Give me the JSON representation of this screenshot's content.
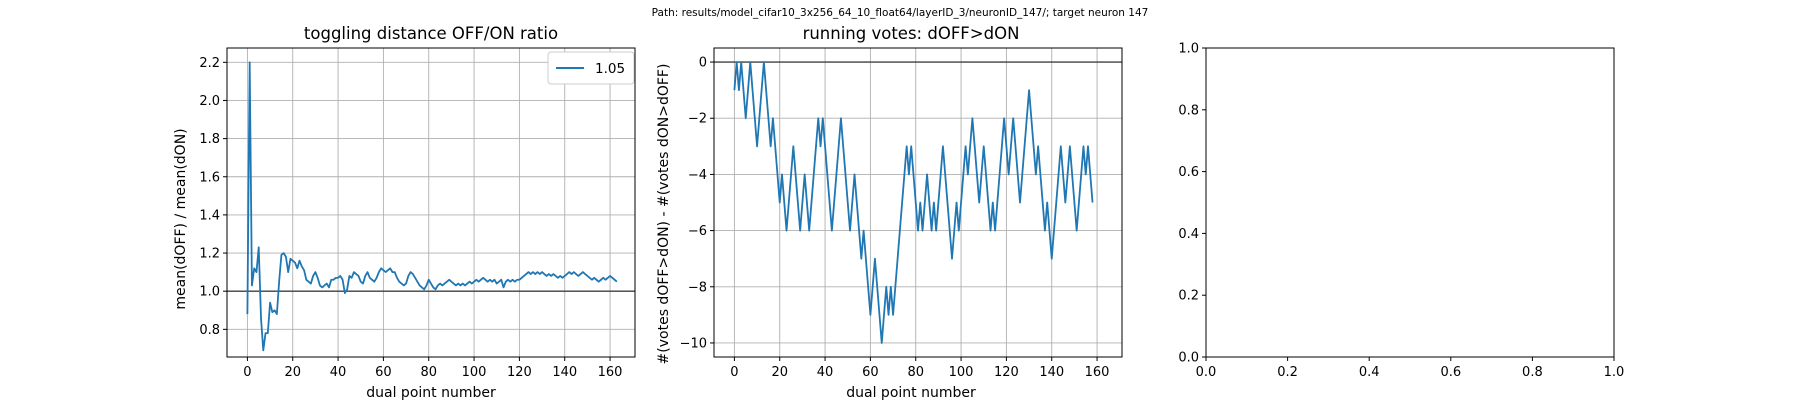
{
  "figure": {
    "suptitle": "Path: results/model_cifar10_3x256_64_10_float64/layerID_3/neuronID_147/; target neuron 147"
  },
  "colors": {
    "series": "#1f77b4",
    "grid": "#b0b0b0",
    "axis": "#000000",
    "refline": "#404040"
  },
  "chart_data": [
    {
      "type": "line",
      "title": "toggling distance OFF/ON ratio",
      "xlabel": "dual point number",
      "ylabel": "mean(dOFF) / mean(dON)",
      "xlim": [
        -9,
        171
      ],
      "ylim": [
        0.655,
        2.275
      ],
      "xticks": [
        0,
        20,
        40,
        60,
        80,
        100,
        120,
        140,
        160
      ],
      "yticks": [
        0.8,
        1.0,
        1.2,
        1.4,
        1.6,
        1.8,
        2.0,
        2.2
      ],
      "ytick_labels": [
        "0.8",
        "1.0",
        "1.2",
        "1.4",
        "1.6",
        "1.8",
        "2.0",
        "2.2"
      ],
      "grid": true,
      "hline": 1.0,
      "legend": {
        "position": "top-right",
        "entries": [
          "1.05"
        ]
      },
      "series": [
        {
          "name": "1.05",
          "x_start": 0,
          "values": [
            0.88,
            2.2,
            1.03,
            1.12,
            1.1,
            1.23,
            0.86,
            0.69,
            0.78,
            0.78,
            0.94,
            0.89,
            0.9,
            0.88,
            1.05,
            1.19,
            1.2,
            1.18,
            1.1,
            1.17,
            1.16,
            1.15,
            1.12,
            1.16,
            1.13,
            1.11,
            1.06,
            1.05,
            1.04,
            1.08,
            1.1,
            1.07,
            1.03,
            1.02,
            1.03,
            1.04,
            1.02,
            1.06,
            1.06,
            1.07,
            1.07,
            1.08,
            1.06,
            0.99,
            1.01,
            1.08,
            1.07,
            1.1,
            1.09,
            1.08,
            1.05,
            1.04,
            1.08,
            1.1,
            1.07,
            1.06,
            1.05,
            1.07,
            1.1,
            1.12,
            1.11,
            1.1,
            1.11,
            1.12,
            1.1,
            1.1,
            1.07,
            1.05,
            1.04,
            1.03,
            1.04,
            1.08,
            1.1,
            1.09,
            1.07,
            1.05,
            1.03,
            1.02,
            1.01,
            1.03,
            1.06,
            1.04,
            1.02,
            1.01,
            1.03,
            1.04,
            1.03,
            1.04,
            1.05,
            1.06,
            1.05,
            1.04,
            1.03,
            1.04,
            1.03,
            1.04,
            1.03,
            1.04,
            1.05,
            1.04,
            1.05,
            1.06,
            1.05,
            1.06,
            1.07,
            1.06,
            1.05,
            1.06,
            1.05,
            1.06,
            1.04,
            1.05,
            1.06,
            1.02,
            1.05,
            1.06,
            1.05,
            1.06,
            1.05,
            1.06,
            1.06,
            1.07,
            1.08,
            1.09,
            1.1,
            1.09,
            1.1,
            1.09,
            1.1,
            1.09,
            1.1,
            1.09,
            1.08,
            1.09,
            1.08,
            1.09,
            1.08,
            1.07,
            1.08,
            1.07,
            1.08,
            1.09,
            1.1,
            1.09,
            1.1,
            1.09,
            1.08,
            1.09,
            1.1,
            1.09,
            1.08,
            1.07,
            1.06,
            1.07,
            1.06,
            1.05,
            1.06,
            1.07,
            1.06,
            1.07,
            1.08,
            1.07,
            1.06,
            1.05
          ]
        }
      ]
    },
    {
      "type": "line",
      "title": "running votes: dOFF>dON",
      "xlabel": "dual point number",
      "ylabel": "#(votes dOFF>dON) - #(votes dON>dOFF)",
      "xlim": [
        -9,
        171
      ],
      "ylim": [
        -10.5,
        0.5
      ],
      "xticks": [
        0,
        20,
        40,
        60,
        80,
        100,
        120,
        140,
        160
      ],
      "yticks": [
        0,
        -2,
        -4,
        -6,
        -8,
        -10
      ],
      "ytick_labels": [
        "0",
        "−2",
        "−4",
        "−6",
        "−8",
        "−10"
      ],
      "grid": true,
      "hline": 0,
      "series": [
        {
          "x_start": 0,
          "values": [
            -1,
            0,
            -1,
            0,
            -1,
            -2,
            -1,
            0,
            -1,
            -2,
            -3,
            -2,
            -1,
            0,
            -1,
            -2,
            -3,
            -2,
            -3,
            -4,
            -5,
            -4,
            -5,
            -6,
            -5,
            -4,
            -3,
            -4,
            -5,
            -6,
            -5,
            -4,
            -5,
            -6,
            -5,
            -4,
            -3,
            -2,
            -3,
            -2,
            -3,
            -4,
            -5,
            -6,
            -5,
            -4,
            -3,
            -2,
            -3,
            -4,
            -5,
            -6,
            -5,
            -4,
            -5,
            -6,
            -7,
            -6,
            -7,
            -8,
            -9,
            -8,
            -7,
            -8,
            -9,
            -10,
            -9,
            -8,
            -9,
            -8,
            -9,
            -8,
            -7,
            -6,
            -5,
            -4,
            -3,
            -4,
            -3,
            -4,
            -5,
            -6,
            -5,
            -6,
            -5,
            -4,
            -5,
            -6,
            -5,
            -6,
            -5,
            -4,
            -3,
            -4,
            -5,
            -6,
            -7,
            -6,
            -5,
            -6,
            -5,
            -4,
            -3,
            -4,
            -3,
            -2,
            -3,
            -4,
            -5,
            -4,
            -3,
            -4,
            -5,
            -6,
            -5,
            -6,
            -5,
            -4,
            -3,
            -2,
            -3,
            -4,
            -3,
            -2,
            -3,
            -4,
            -5,
            -4,
            -3,
            -2,
            -1,
            -2,
            -3,
            -4,
            -3,
            -4,
            -5,
            -6,
            -5,
            -6,
            -7,
            -6,
            -5,
            -4,
            -3,
            -4,
            -5,
            -4,
            -3,
            -4,
            -5,
            -6,
            -5,
            -4,
            -3,
            -4,
            -3,
            -4,
            -5
          ]
        }
      ]
    },
    {
      "type": "line",
      "title": "",
      "xlabel": "",
      "ylabel": "",
      "xlim": [
        0,
        1
      ],
      "ylim": [
        0,
        1
      ],
      "xticks": [
        0.0,
        0.2,
        0.4,
        0.6,
        0.8,
        1.0
      ],
      "xtick_labels": [
        "0.0",
        "0.2",
        "0.4",
        "0.6",
        "0.8",
        "1.0"
      ],
      "yticks": [
        0.0,
        0.2,
        0.4,
        0.6,
        0.8,
        1.0
      ],
      "ytick_labels": [
        "0.0",
        "0.2",
        "0.4",
        "0.6",
        "0.8",
        "1.0"
      ],
      "grid": false,
      "series": []
    }
  ]
}
